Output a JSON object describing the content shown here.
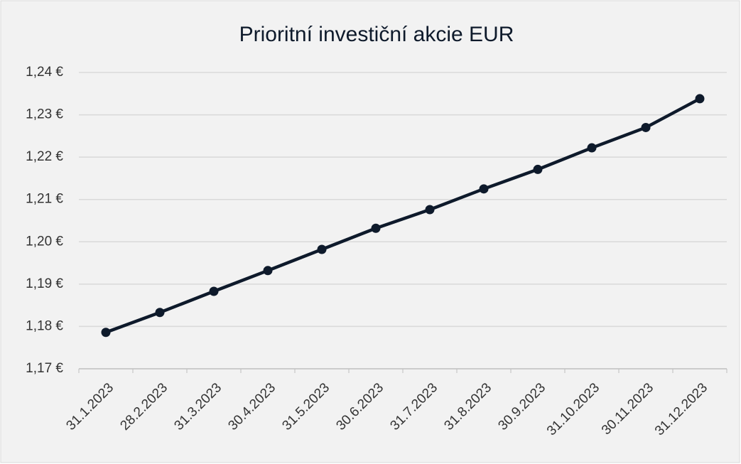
{
  "chart_data": {
    "type": "line",
    "title": "Prioritní investiční akcie EUR",
    "categories": [
      "31.1.2023",
      "28.2.2023",
      "31.3.2023",
      "30.4.2023",
      "31.5.2023",
      "30.6.2023",
      "31.7.2023",
      "31.8.2023",
      "30.9.2023",
      "31.10.2023",
      "30.11.2023",
      "31.12.2023"
    ],
    "values": [
      1.1786,
      1.1833,
      1.1883,
      1.1932,
      1.1982,
      1.2032,
      1.2076,
      1.2125,
      1.2171,
      1.2222,
      1.227,
      1.2338
    ],
    "color": "#0e1a2b",
    "ylim": [
      1.17,
      1.24
    ],
    "yticks": [
      {
        "value": 1.17,
        "label": "1,17 €"
      },
      {
        "value": 1.18,
        "label": "1,18 €"
      },
      {
        "value": 1.19,
        "label": "1,19 €"
      },
      {
        "value": 1.2,
        "label": "1,20 €"
      },
      {
        "value": 1.21,
        "label": "1,21 €"
      },
      {
        "value": 1.22,
        "label": "1,22 €"
      },
      {
        "value": 1.23,
        "label": "1,23 €"
      },
      {
        "value": 1.24,
        "label": "1,24 €"
      }
    ],
    "grid": true
  }
}
